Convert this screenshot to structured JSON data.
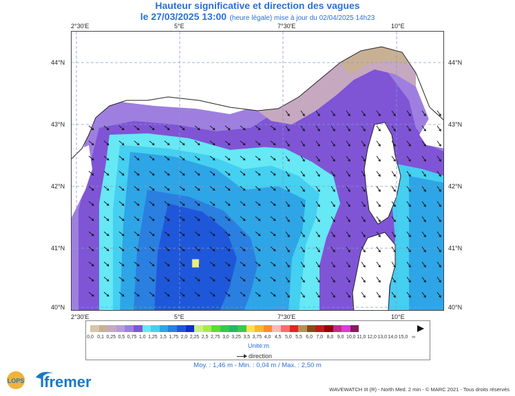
{
  "header": {
    "title": "Hauteur significative et direction des vagues",
    "date": "le 27/03/2025 13:00",
    "subtitle": "(heure légale) mise à jour du 02/04/2025 14h23"
  },
  "map": {
    "lon_ticks": [
      "2°30'E",
      "5°E",
      "7°30'E",
      "10°E"
    ],
    "lat_ticks": [
      "44°N",
      "43°N",
      "42°N",
      "41°N",
      "40°N"
    ],
    "bounds": {
      "lon_min": 2.0,
      "lon_max": 10.6,
      "lat_min": 39.95,
      "lat_max": 44.45
    }
  },
  "legend": {
    "labels": [
      "0,0",
      "0,1",
      "0,25",
      "0,5",
      "0,75",
      "1,0",
      "1,25",
      "1,5",
      "1,75",
      "2,0",
      "2,25",
      "2,5",
      "2,75",
      "3,0",
      "3,25",
      "3,5",
      "3,75",
      "4,0",
      "4,5",
      "5,0",
      "5,5",
      "6,0",
      "7,0",
      "8,0",
      "9,0",
      "10,0",
      "11,0",
      "12,0",
      "13,0",
      "14,0",
      "15,0",
      "∞"
    ],
    "colors": [
      "#d8c6a8",
      "#c8b095",
      "#c6a8c0",
      "#b49ddb",
      "#9e7fe0",
      "#7f55d6",
      "#66e8f5",
      "#45cff0",
      "#2ea5e6",
      "#2a7fe0",
      "#1f57da",
      "#0f2fcc",
      "#c8f07d",
      "#a5ea4d",
      "#5ddc32",
      "#33c94a",
      "#22b86a",
      "#3ac94b",
      "#ffe04b",
      "#ffb52e",
      "#ff8a2e",
      "#ffb8b8",
      "#ff6a6a",
      "#e02525",
      "#b88d5a",
      "#8a4b1a",
      "#c21a1a",
      "#990000",
      "#c22c8c",
      "#e03ad9",
      "#8a1a60"
    ],
    "unit": "Unité:m",
    "direction_label": "direction"
  },
  "stats": "Moy. : 1,46 m   -   Min. : 0,04 m / Max. : 2,50 m",
  "footer": {
    "lops": "LOPS",
    "ifremer": "Ifremer",
    "credit": "WAVEWATCH III (R) - North Med. 2 min - © MARC 2021 - Tous droits réservés"
  }
}
